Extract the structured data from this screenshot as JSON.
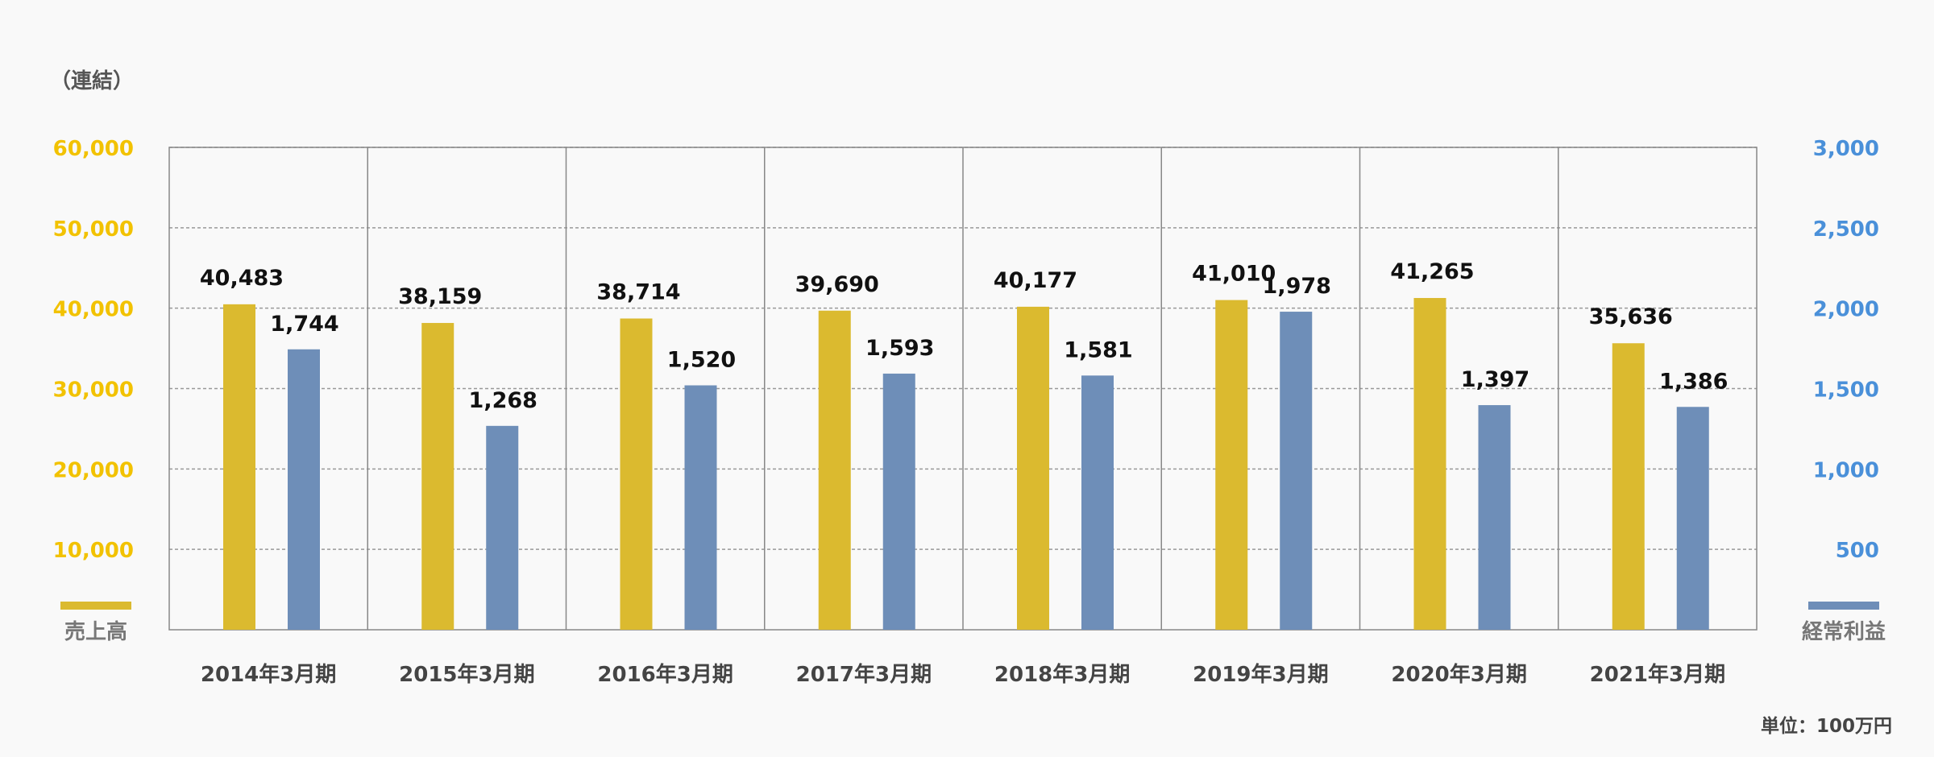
{
  "notes": {
    "consolidated": "（連結）",
    "unit": "単位：100万円"
  },
  "colors": {
    "sales": "#dbba2f",
    "profit": "#6e8eb8",
    "left_axis_text": "#f2c200",
    "right_axis_text": "#4a90d9",
    "legend_text": "#777777",
    "grid": "#999999",
    "frame": "#888888"
  },
  "chart_data": {
    "type": "bar",
    "title": "",
    "categories": [
      "2014年3月期",
      "2015年3月期",
      "2016年3月期",
      "2017年3月期",
      "2018年3月期",
      "2019年3月期",
      "2020年3月期",
      "2021年3月期"
    ],
    "series": [
      {
        "name": "売上高",
        "axis": "left",
        "values": [
          40483,
          38159,
          38714,
          39690,
          40177,
          41010,
          41265,
          35636
        ],
        "labels": [
          "40,483",
          "38,159",
          "38,714",
          "39,690",
          "40,177",
          "41,010",
          "41,265",
          "35,636"
        ]
      },
      {
        "name": "経常利益",
        "axis": "right",
        "values": [
          1744,
          1268,
          1520,
          1593,
          1581,
          1978,
          1397,
          1386
        ],
        "labels": [
          "1,744",
          "1,268",
          "1,520",
          "1,593",
          "1,581",
          "1,978",
          "1,397",
          "1,386"
        ]
      }
    ],
    "left_axis": {
      "ylim": [
        0,
        60000
      ],
      "ticks": [
        "10,000",
        "20,000",
        "30,000",
        "40,000",
        "50,000",
        "60,000"
      ]
    },
    "right_axis": {
      "ylim": [
        0,
        3000
      ],
      "ticks": [
        "500",
        "1,000",
        "1,500",
        "2,000",
        "2,500",
        "3,000"
      ]
    },
    "grid": true,
    "legend": "bottom-corners"
  }
}
